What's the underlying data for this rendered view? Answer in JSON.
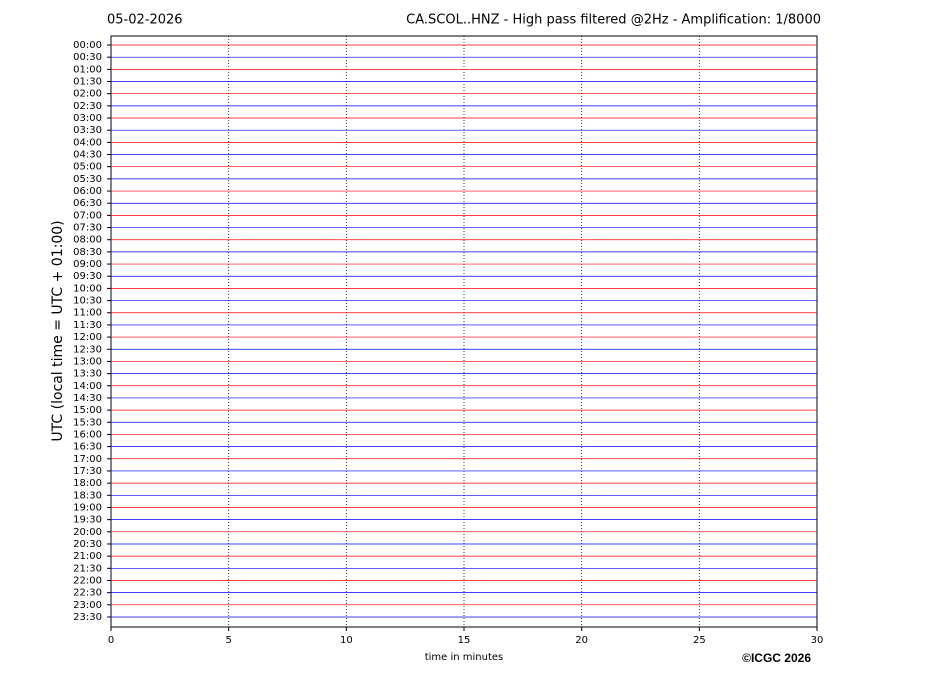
{
  "chart_data": {
    "type": "helicorder",
    "date": "05-02-2026",
    "title": "CA.SCOL..HNZ - High pass filtered @2Hz - Amplification: 1/8000",
    "ylabel": "UTC (local time = UTC + 01:00)",
    "xlabel": "time in minutes",
    "credit": "©ICGC 2026",
    "categories": [
      "00:00",
      "00:30",
      "01:00",
      "01:30",
      "02:00",
      "02:30",
      "03:00",
      "03:30",
      "04:00",
      "04:30",
      "05:00",
      "05:30",
      "06:00",
      "06:30",
      "07:00",
      "07:30",
      "08:00",
      "08:30",
      "09:00",
      "09:30",
      "10:00",
      "10:30",
      "11:00",
      "11:30",
      "12:00",
      "12:30",
      "13:00",
      "13:30",
      "14:00",
      "14:30",
      "15:00",
      "15:30",
      "16:00",
      "16:30",
      "17:00",
      "17:30",
      "18:00",
      "18:30",
      "19:00",
      "19:30",
      "20:00",
      "20:30",
      "21:00",
      "21:30",
      "22:00",
      "22:30",
      "23:00",
      "23:30"
    ],
    "colors": [
      "#ff0000",
      "#0000ff"
    ],
    "xlim": [
      0,
      30
    ],
    "xticks": [
      0,
      5,
      10,
      15,
      20,
      25,
      30
    ],
    "grid": "x"
  }
}
